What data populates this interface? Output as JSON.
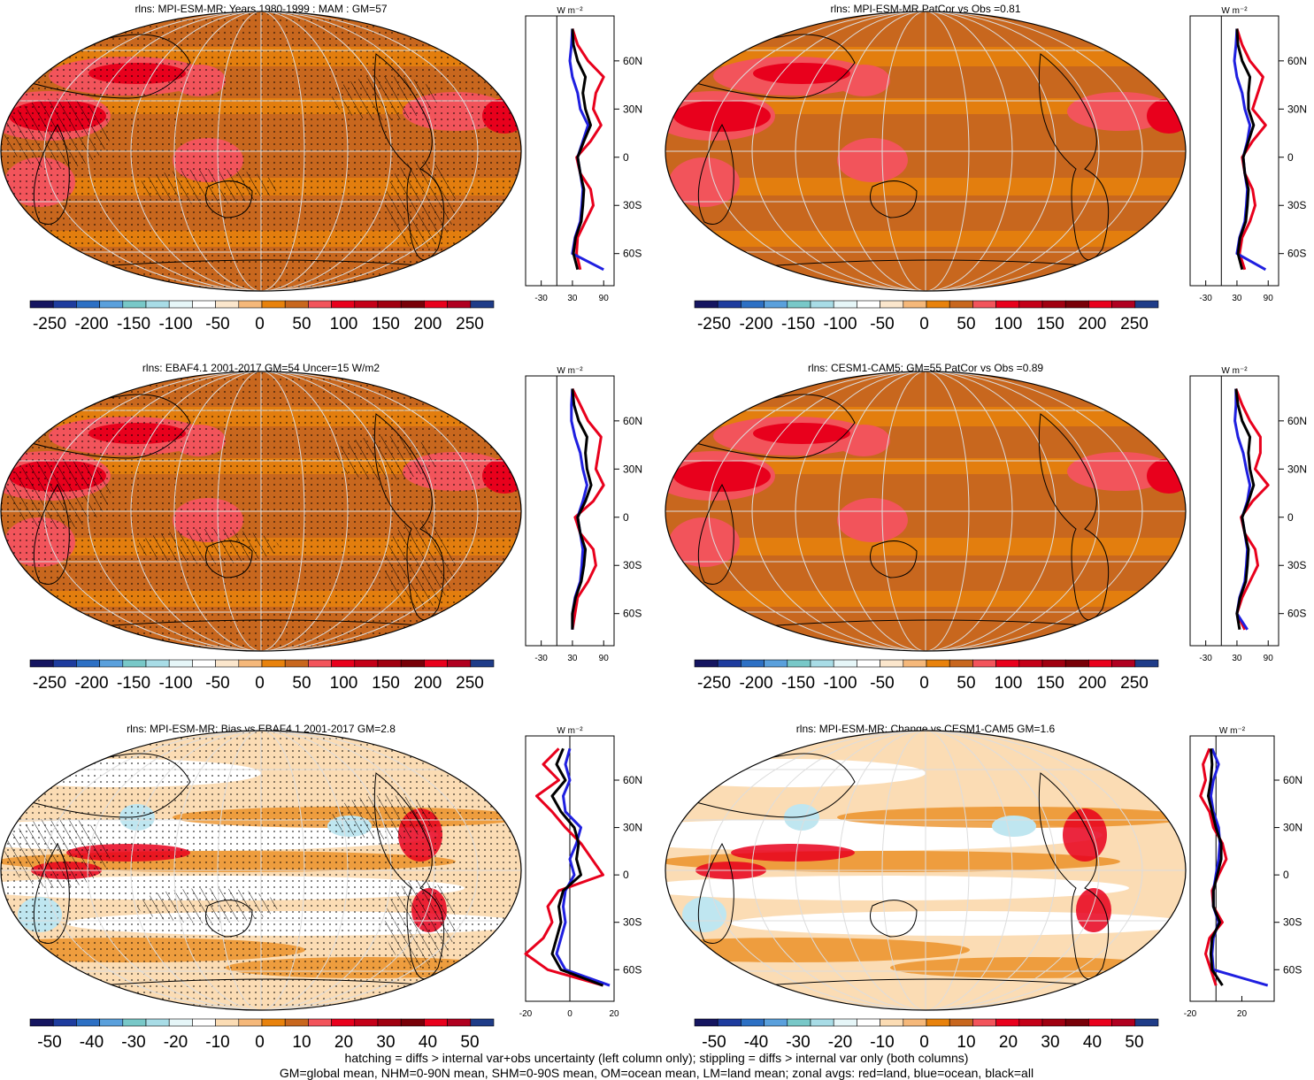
{
  "colors": {
    "ocean_base": "#c8671e",
    "ocean_light": "#e8820c",
    "land_warm": "#f2545b",
    "land_hot": "#e8001c",
    "bias_light": "#fbdcb4",
    "bias_white": "#ffffff",
    "bias_blue": "#bfe6f0",
    "grid": "#dddddd",
    "coast": "#000000",
    "zonal_land": "#e8001c",
    "zonal_ocean": "#1f1fe0",
    "zonal_all": "#000000"
  },
  "palette_abs": [
    "#151560",
    "#1e3c9e",
    "#2d70c4",
    "#5aa0dc",
    "#78c8c8",
    "#a8dce6",
    "#e6f6f8",
    "#ffffff",
    "#fbe6cc",
    "#f5b87a",
    "#e8820c",
    "#c8671e",
    "#f2545b",
    "#e8001c",
    "#c40018",
    "#a00010",
    "#780008",
    "#e8001c",
    "#b00020",
    "#1f3c88"
  ],
  "palette_diff": [
    "#151560",
    "#1e3c9e",
    "#2d70c4",
    "#5aa0dc",
    "#78c8c8",
    "#a8dce6",
    "#e6f6f8",
    "#ffffff",
    "#fbdcb4",
    "#f5b87a",
    "#e8820c",
    "#c8671e",
    "#f2545b",
    "#e8001c",
    "#c40018",
    "#a00010",
    "#780008",
    "#e8001c",
    "#b00020",
    "#1f3c88"
  ],
  "colorbar_abs_labels": [
    "-250",
    "-200",
    "-150",
    "-100",
    "-50",
    "0",
    "50",
    "100",
    "150",
    "200",
    "250"
  ],
  "colorbar_diff_labels": [
    "-50",
    "-40",
    "-30",
    "-20",
    "-10",
    "0",
    "10",
    "20",
    "30",
    "40",
    "50"
  ],
  "zonal_lat_labels": [
    "60N",
    "30N",
    "0",
    "30S",
    "60S"
  ],
  "zonal_unit": "W m⁻²",
  "panels": [
    {
      "title": "rlns: MPI-ESM-MR: Years 1980-1999 : MAM : GM=57",
      "kind": "abs",
      "stipple": true,
      "hatch": true,
      "zonal_ticks": [
        "-30",
        "30",
        "90"
      ]
    },
    {
      "title": "rlns: MPI-ESM-MR PatCor vs Obs =0.81",
      "kind": "abs",
      "stipple": false,
      "hatch": false,
      "zonal_ticks": [
        "-30",
        "30",
        "90"
      ]
    },
    {
      "title": "rlns: EBAF4.1 2001-2017 GM=54 Uncer=15 W/m2",
      "kind": "abs",
      "stipple": true,
      "hatch": true,
      "zonal_ticks": [
        "-30",
        "30",
        "90"
      ]
    },
    {
      "title": "rlns: CESM1-CAM5: GM=55 PatCor vs Obs =0.89",
      "kind": "abs",
      "stipple": false,
      "hatch": false,
      "zonal_ticks": [
        "-30",
        "30",
        "90"
      ]
    },
    {
      "title": "rlns: MPI-ESM-MR: Bias vs EBAF4.1 2001-2017 GM=2.8",
      "kind": "diff",
      "stipple": true,
      "hatch": true,
      "zonal_ticks": [
        "-20",
        "0",
        "20"
      ]
    },
    {
      "title": "rlns: MPI-ESM-MR: Change vs CESM1-CAM5 GM=1.6",
      "kind": "diff",
      "stipple": false,
      "hatch": false,
      "zonal_ticks": [
        "-20",
        "20"
      ]
    }
  ],
  "footer": {
    "line1": "hatching = diffs > internal var+obs uncertainty (left column only); stippling = diffs > internal var only (both columns)",
    "line2": "GM=global mean, NHM=0-90N mean, SHM=0-90S mean, OM=ocean mean, LM=land mean; zonal avgs: red=land, blue=ocean, black=all"
  },
  "chart_data": [
    {
      "type": "zonal-profile",
      "title": "rlns: MPI-ESM-MR: Years 1980-1999 : MAM : GM=57",
      "xlabel": "W m⁻²",
      "x_ticks": [
        -30,
        30,
        90
      ],
      "y_ticks": [
        "60N",
        "30N",
        "0",
        "30S",
        "60S"
      ],
      "lat": [
        80,
        70,
        60,
        50,
        40,
        30,
        20,
        10,
        0,
        -10,
        -20,
        -30,
        -40,
        -50,
        -60,
        -70
      ],
      "series": [
        {
          "name": "land",
          "values": [
            30,
            40,
            60,
            90,
            75,
            70,
            85,
            65,
            38,
            45,
            65,
            70,
            55,
            40,
            38,
            45
          ]
        },
        {
          "name": "ocean",
          "values": [
            30,
            28,
            25,
            30,
            40,
            45,
            60,
            50,
            40,
            45,
            50,
            48,
            45,
            35,
            30,
            90
          ]
        },
        {
          "name": "all",
          "values": [
            30,
            32,
            40,
            55,
            50,
            55,
            65,
            52,
            40,
            45,
            52,
            50,
            47,
            36,
            32,
            40
          ]
        }
      ]
    },
    {
      "type": "zonal-profile",
      "title": "rlns: MPI-ESM-MR PatCor vs Obs =0.81",
      "xlabel": "W m⁻²",
      "x_ticks": [
        -30,
        30,
        90
      ],
      "y_ticks": [
        "60N",
        "30N",
        "0",
        "30S",
        "60S"
      ],
      "lat": [
        80,
        70,
        60,
        50,
        40,
        30,
        20,
        10,
        0,
        -10,
        -20,
        -30,
        -40,
        -50,
        -60,
        -70
      ],
      "series": [
        {
          "name": "land",
          "values": [
            30,
            40,
            55,
            80,
            70,
            60,
            85,
            60,
            40,
            45,
            60,
            65,
            55,
            40,
            35,
            45
          ]
        },
        {
          "name": "ocean",
          "values": [
            30,
            28,
            25,
            30,
            40,
            45,
            55,
            50,
            42,
            45,
            50,
            48,
            45,
            35,
            30,
            85
          ]
        },
        {
          "name": "all",
          "values": [
            30,
            32,
            40,
            55,
            52,
            52,
            62,
            52,
            42,
            45,
            52,
            50,
            47,
            36,
            32,
            40
          ]
        }
      ]
    },
    {
      "type": "zonal-profile",
      "title": "rlns: EBAF4.1 2001-2017 GM=54 Uncer=15 W/m2",
      "xlabel": "W m⁻²",
      "x_ticks": [
        -30,
        30,
        90
      ],
      "y_ticks": [
        "60N",
        "30N",
        "0",
        "30S",
        "60S"
      ],
      "lat": [
        80,
        70,
        60,
        50,
        40,
        30,
        20,
        10,
        0,
        -10,
        -20,
        -30,
        -40,
        -50,
        -60,
        -70
      ],
      "series": [
        {
          "name": "land",
          "values": [
            30,
            45,
            60,
            85,
            80,
            75,
            90,
            70,
            35,
            45,
            70,
            75,
            60,
            40,
            35,
            30
          ]
        },
        {
          "name": "ocean",
          "values": [
            30,
            28,
            28,
            35,
            45,
            50,
            58,
            50,
            40,
            45,
            50,
            48,
            45,
            35,
            30,
            30
          ]
        },
        {
          "name": "all",
          "values": [
            30,
            33,
            42,
            58,
            55,
            58,
            66,
            55,
            40,
            45,
            55,
            52,
            47,
            36,
            30,
            30
          ]
        }
      ]
    },
    {
      "type": "zonal-profile",
      "title": "rlns: CESM1-CAM5: GM=55 PatCor vs Obs =0.89",
      "xlabel": "W m⁻²",
      "x_ticks": [
        -30,
        30,
        90
      ],
      "y_ticks": [
        "60N",
        "30N",
        "0",
        "30S",
        "60S"
      ],
      "lat": [
        80,
        70,
        60,
        50,
        40,
        30,
        20,
        10,
        0,
        -10,
        -20,
        -30,
        -40,
        -50,
        -60,
        -70
      ],
      "series": [
        {
          "name": "land",
          "values": [
            28,
            40,
            55,
            75,
            75,
            65,
            90,
            60,
            38,
            45,
            65,
            70,
            55,
            40,
            30,
            45
          ]
        },
        {
          "name": "ocean",
          "values": [
            28,
            28,
            26,
            32,
            42,
            48,
            55,
            50,
            40,
            45,
            50,
            48,
            45,
            35,
            30,
            50
          ]
        },
        {
          "name": "all",
          "values": [
            28,
            32,
            40,
            55,
            52,
            55,
            62,
            52,
            40,
            45,
            52,
            50,
            47,
            36,
            30,
            35
          ]
        }
      ]
    },
    {
      "type": "zonal-profile",
      "title": "rlns: MPI-ESM-MR: Bias vs EBAF4.1 2001-2017 GM=2.8",
      "xlabel": "W m⁻²",
      "x_ticks": [
        -20,
        0,
        20
      ],
      "y_ticks": [
        "60N",
        "30N",
        "0",
        "30S",
        "60S"
      ],
      "lat": [
        80,
        70,
        60,
        50,
        40,
        30,
        20,
        10,
        0,
        -10,
        -20,
        -30,
        -40,
        -50,
        -60,
        -70
      ],
      "series": [
        {
          "name": "land",
          "values": [
            -5,
            -12,
            -5,
            -15,
            -8,
            -2,
            5,
            10,
            15,
            -5,
            -10,
            -8,
            -12,
            -20,
            -10,
            15
          ]
        },
        {
          "name": "ocean",
          "values": [
            0,
            -2,
            0,
            -3,
            -2,
            5,
            3,
            0,
            2,
            -2,
            -3,
            -2,
            -4,
            -6,
            -2,
            18
          ]
        },
        {
          "name": "all",
          "values": [
            -3,
            -6,
            -2,
            -8,
            -4,
            2,
            4,
            3,
            5,
            -3,
            -5,
            -4,
            -6,
            -8,
            -4,
            15
          ]
        }
      ]
    },
    {
      "type": "zonal-profile",
      "title": "rlns: MPI-ESM-MR: Change vs CESM1-CAM5 GM=1.6",
      "xlabel": "W m⁻²",
      "x_ticks": [
        -20,
        20
      ],
      "y_ticks": [
        "60N",
        "30N",
        "0",
        "30S",
        "60S"
      ],
      "lat": [
        80,
        70,
        60,
        50,
        40,
        30,
        20,
        10,
        0,
        -10,
        -20,
        -30,
        -40,
        -50,
        -60,
        -70
      ],
      "series": [
        {
          "name": "land",
          "values": [
            -5,
            -10,
            -8,
            -12,
            -5,
            -2,
            5,
            8,
            2,
            -3,
            -2,
            5,
            -5,
            -8,
            -4,
            0
          ]
        },
        {
          "name": "ocean",
          "values": [
            -3,
            2,
            -2,
            -4,
            -2,
            2,
            3,
            2,
            0,
            -2,
            -2,
            2,
            -2,
            -3,
            -2,
            40
          ]
        },
        {
          "name": "all",
          "values": [
            -4,
            -3,
            -4,
            -6,
            -3,
            0,
            4,
            4,
            1,
            -2,
            -2,
            3,
            -3,
            -4,
            -3,
            5
          ]
        }
      ]
    }
  ]
}
